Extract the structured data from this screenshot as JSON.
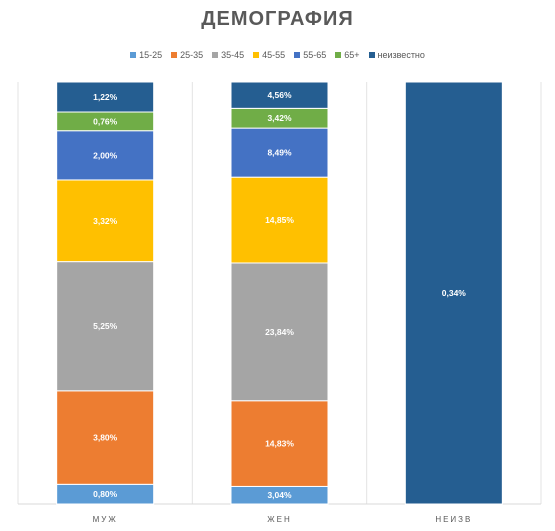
{
  "chart_data": {
    "type": "bar",
    "stacked": true,
    "title": "ДЕМОГРАФИЯ",
    "categories": [
      "МУЖ",
      "ЖЕН",
      "НЕИЗВ"
    ],
    "series": [
      {
        "name": "15-25",
        "color": "#5B9BD5",
        "values": [
          0.8,
          3.04,
          0
        ],
        "labels": [
          "0,80%",
          "3,04%",
          ""
        ]
      },
      {
        "name": "25-35",
        "color": "#ED7D31",
        "values": [
          3.8,
          14.83,
          0
        ],
        "labels": [
          "3,80%",
          "14,83%",
          ""
        ]
      },
      {
        "name": "35-45",
        "color": "#A5A5A5",
        "values": [
          5.25,
          23.84,
          0
        ],
        "labels": [
          "5,25%",
          "23,84%",
          ""
        ]
      },
      {
        "name": "45-55",
        "color": "#FFC000",
        "values": [
          3.32,
          14.85,
          0
        ],
        "labels": [
          "3,32%",
          "14,85%",
          ""
        ]
      },
      {
        "name": "55-65",
        "color": "#4472C4",
        "values": [
          2.0,
          8.49,
          0
        ],
        "labels": [
          "2,00%",
          "8,49%",
          ""
        ]
      },
      {
        "name": "65+",
        "color": "#70AD47",
        "values": [
          0.76,
          3.42,
          0
        ],
        "labels": [
          "0,76%",
          "3,42%",
          ""
        ]
      },
      {
        "name": "неизвестно",
        "color": "#255E91",
        "values": [
          1.22,
          4.56,
          0.34
        ],
        "labels": [
          "1,22%",
          "4,56%",
          "0,34%"
        ]
      }
    ],
    "normalized": true,
    "legend_position": "top",
    "grid": false
  }
}
